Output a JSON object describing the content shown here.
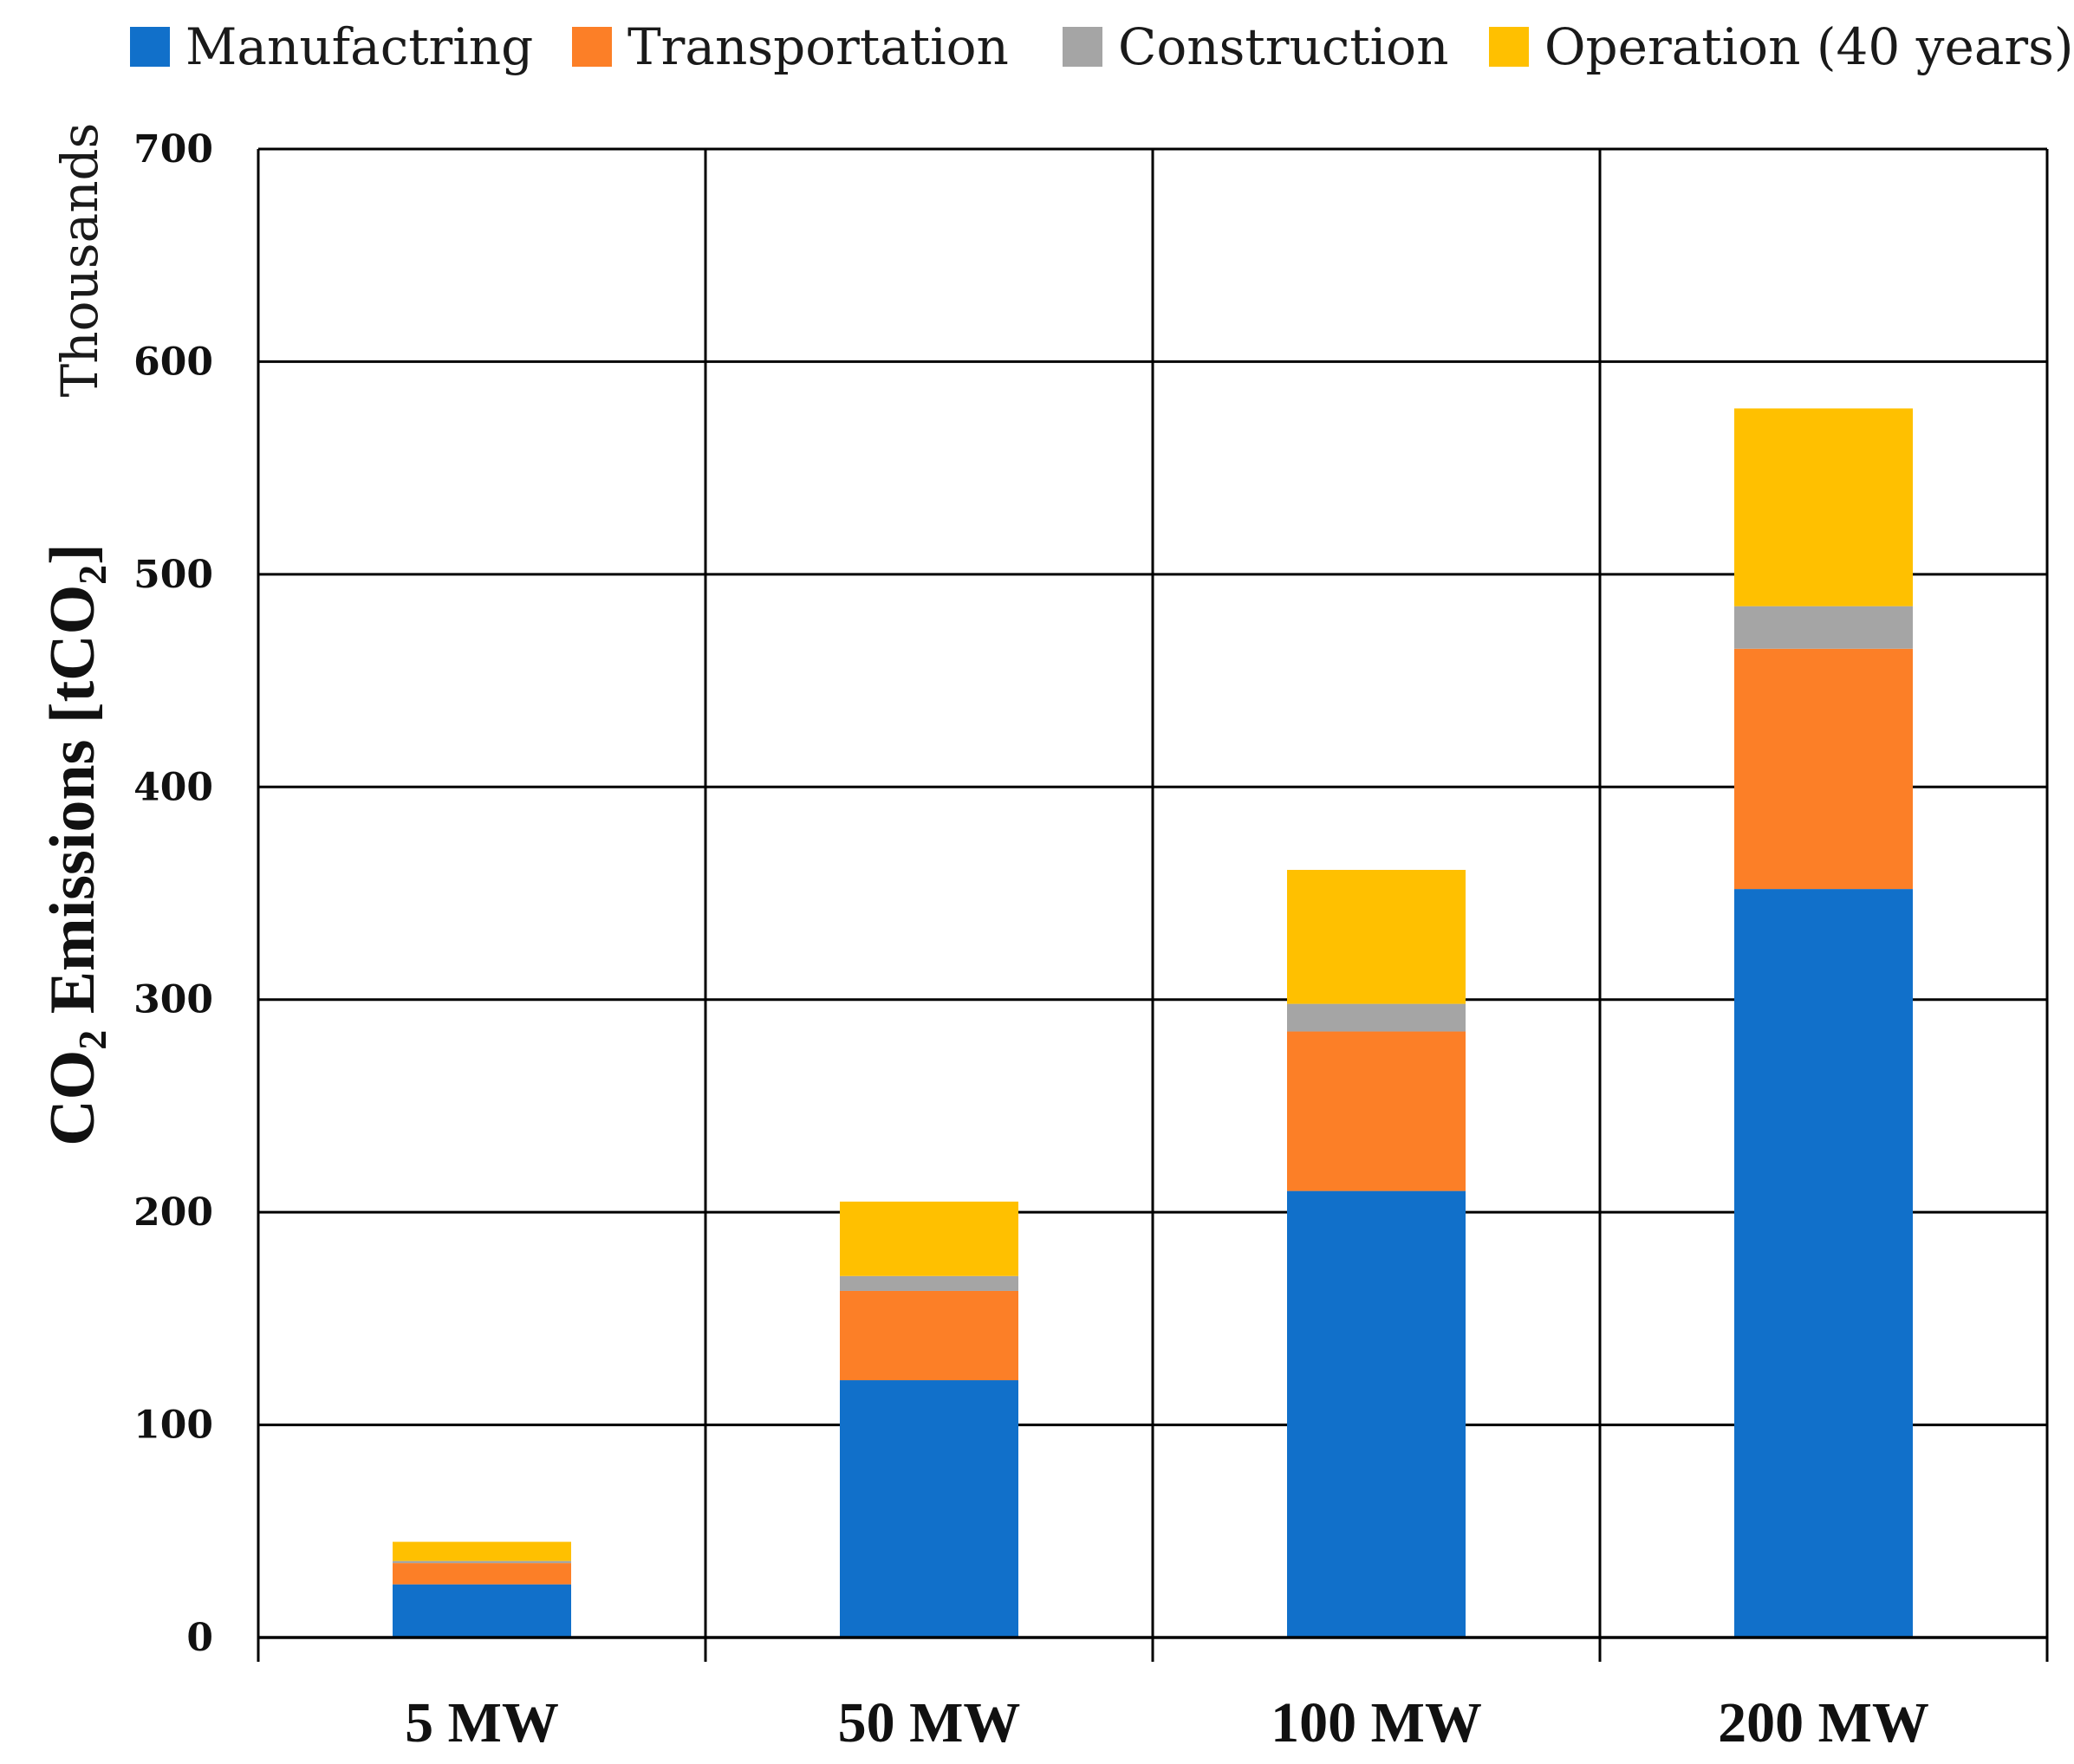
{
  "chart_data": {
    "type": "bar",
    "stacked": true,
    "title": "",
    "xlabel": "",
    "ylabel": {
      "prefix": "CO",
      "prefix_sub": "2",
      "middle": " Emissions [tCO",
      "middle_sub": "2",
      "suffix": "]"
    },
    "y_multiplier_label": "Thousands",
    "ylim": [
      0,
      700
    ],
    "yticks": [
      0,
      100,
      200,
      300,
      400,
      500,
      600,
      700
    ],
    "grid": true,
    "legend_position": "top",
    "categories": [
      "5 MW",
      "50 MW",
      "100 MW",
      "200 MW"
    ],
    "series": [
      {
        "name": "Manufactring",
        "color": "#1170CA",
        "values": [
          25,
          121,
          210,
          352
        ]
      },
      {
        "name": "Transportation",
        "color": "#FC7F27",
        "values": [
          10,
          42,
          75,
          113
        ]
      },
      {
        "name": "Construction",
        "color": "#A5A5A5",
        "values": [
          1,
          7,
          13,
          20
        ]
      },
      {
        "name": "Operation (40 years)",
        "color": "#FFC000",
        "values": [
          9,
          35,
          63,
          93
        ]
      }
    ]
  }
}
